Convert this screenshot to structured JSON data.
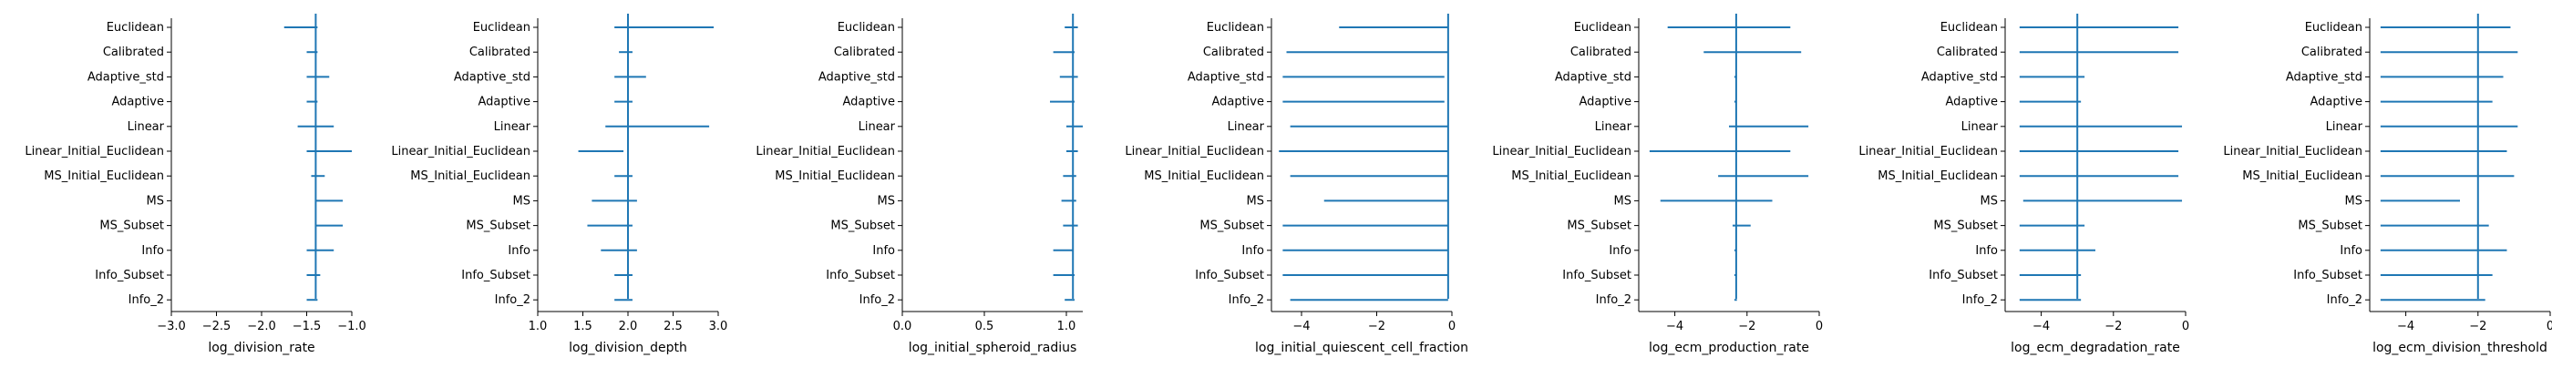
{
  "chart_data": [
    {
      "type": "errorbar",
      "xlabel": "log_division_rate",
      "xlim": [
        -3.0,
        -1.0
      ],
      "xticks": [
        -3.0,
        -2.5,
        -2.0,
        -1.5,
        -1.0
      ],
      "xtick_labels": [
        "−3.0",
        "−2.5",
        "−2.0",
        "−1.5",
        "−1.0"
      ],
      "reference": -1.4,
      "categories": [
        "Euclidean",
        "Calibrated",
        "Adaptive_std",
        "Adaptive",
        "Linear",
        "Linear_Initial_Euclidean",
        "MS_Initial_Euclidean",
        "MS",
        "MS_Subset",
        "Info",
        "Info_Subset",
        "Info_2"
      ],
      "ranges": [
        [
          -1.75,
          -1.38
        ],
        [
          -1.5,
          -1.38
        ],
        [
          -1.5,
          -1.25
        ],
        [
          -1.5,
          -1.38
        ],
        [
          -1.6,
          -1.2
        ],
        [
          -1.5,
          -1.0
        ],
        [
          -1.45,
          -1.3
        ],
        [
          -1.4,
          -1.1
        ],
        [
          -1.4,
          -1.1
        ],
        [
          -1.5,
          -1.2
        ],
        [
          -1.5,
          -1.35
        ],
        [
          -1.5,
          -1.38
        ]
      ]
    },
    {
      "type": "errorbar",
      "xlabel": "log_division_depth",
      "xlim": [
        1.0,
        3.0
      ],
      "xticks": [
        1.0,
        1.5,
        2.0,
        2.5,
        3.0
      ],
      "xtick_labels": [
        "1.0",
        "1.5",
        "2.0",
        "2.5",
        "3.0"
      ],
      "reference": 2.0,
      "categories": [
        "Euclidean",
        "Calibrated",
        "Adaptive_std",
        "Adaptive",
        "Linear",
        "Linear_Initial_Euclidean",
        "MS_Initial_Euclidean",
        "MS",
        "MS_Subset",
        "Info",
        "Info_Subset",
        "Info_2"
      ],
      "ranges": [
        [
          1.85,
          2.95
        ],
        [
          1.9,
          2.05
        ],
        [
          1.85,
          2.2
        ],
        [
          1.85,
          2.05
        ],
        [
          1.75,
          2.9
        ],
        [
          1.45,
          1.95
        ],
        [
          1.85,
          2.05
        ],
        [
          1.6,
          2.1
        ],
        [
          1.55,
          2.05
        ],
        [
          1.7,
          2.1
        ],
        [
          1.85,
          2.05
        ],
        [
          1.85,
          2.05
        ]
      ]
    },
    {
      "type": "errorbar",
      "xlabel": "log_initial_spheroid_radius",
      "xlim": [
        0.0,
        1.1
      ],
      "xticks": [
        0.0,
        0.5,
        1.0
      ],
      "xtick_labels": [
        "0.0",
        "0.5",
        "1.0"
      ],
      "reference": 1.04,
      "categories": [
        "Euclidean",
        "Calibrated",
        "Adaptive_std",
        "Adaptive",
        "Linear",
        "Linear_Initial_Euclidean",
        "MS_Initial_Euclidean",
        "MS",
        "MS_Subset",
        "Info",
        "Info_Subset",
        "Info_2"
      ],
      "ranges": [
        [
          0.99,
          1.07
        ],
        [
          0.92,
          1.05
        ],
        [
          0.96,
          1.07
        ],
        [
          0.9,
          1.05
        ],
        [
          1.0,
          1.1
        ],
        [
          1.0,
          1.07
        ],
        [
          0.98,
          1.06
        ],
        [
          0.97,
          1.06
        ],
        [
          0.98,
          1.07
        ],
        [
          0.92,
          1.04
        ],
        [
          0.92,
          1.05
        ],
        [
          0.99,
          1.05
        ]
      ]
    },
    {
      "type": "errorbar",
      "xlabel": "log_initial_quiescent_cell_fraction",
      "xlim": [
        -4.8,
        0.0
      ],
      "xticks": [
        -4,
        -2,
        0
      ],
      "xtick_labels": [
        "−4",
        "−2",
        "0"
      ],
      "reference": -0.1,
      "categories": [
        "Euclidean",
        "Calibrated",
        "Adaptive_std",
        "Adaptive",
        "Linear",
        "Linear_Initial_Euclidean",
        "MS_Initial_Euclidean",
        "MS",
        "MS_Subset",
        "Info",
        "Info_Subset",
        "Info_2"
      ],
      "ranges": [
        [
          -3.0,
          -0.1
        ],
        [
          -4.4,
          -0.1
        ],
        [
          -4.5,
          -0.2
        ],
        [
          -4.5,
          -0.2
        ],
        [
          -4.3,
          -0.1
        ],
        [
          -4.6,
          -0.1
        ],
        [
          -4.3,
          -0.1
        ],
        [
          -3.4,
          -0.1
        ],
        [
          -4.5,
          -0.1
        ],
        [
          -4.5,
          -0.1
        ],
        [
          -4.5,
          -0.1
        ],
        [
          -4.3,
          -0.1
        ]
      ]
    },
    {
      "type": "errorbar",
      "xlabel": "log_ecm_production_rate",
      "xlim": [
        -5.0,
        0.0
      ],
      "xticks": [
        -4,
        -2,
        0
      ],
      "xtick_labels": [
        "−4",
        "−2",
        "0"
      ],
      "reference": -2.3,
      "categories": [
        "Euclidean",
        "Calibrated",
        "Adaptive_std",
        "Adaptive",
        "Linear",
        "Linear_Initial_Euclidean",
        "MS_Initial_Euclidean",
        "MS",
        "MS_Subset",
        "Info",
        "Info_Subset",
        "Info_2"
      ],
      "ranges": [
        [
          -4.2,
          -0.8
        ],
        [
          -3.2,
          -0.5
        ],
        [
          -2.35,
          -2.28
        ],
        [
          -2.35,
          -2.28
        ],
        [
          -2.5,
          -0.3
        ],
        [
          -4.7,
          -0.8
        ],
        [
          -2.8,
          -0.3
        ],
        [
          -4.4,
          -1.3
        ],
        [
          -2.4,
          -1.9
        ],
        [
          -2.35,
          -2.28
        ],
        [
          -2.35,
          -2.28
        ],
        [
          -2.35,
          -2.28
        ]
      ]
    },
    {
      "type": "errorbar",
      "xlabel": "log_ecm_degradation_rate",
      "xlim": [
        -5.0,
        0.0
      ],
      "xticks": [
        -4,
        -2,
        0
      ],
      "xtick_labels": [
        "−4",
        "−2",
        "0"
      ],
      "reference": -3.0,
      "categories": [
        "Euclidean",
        "Calibrated",
        "Adaptive_std",
        "Adaptive",
        "Linear",
        "Linear_Initial_Euclidean",
        "MS_Initial_Euclidean",
        "MS",
        "MS_Subset",
        "Info",
        "Info_Subset",
        "Info_2"
      ],
      "ranges": [
        [
          -4.6,
          -0.2
        ],
        [
          -4.6,
          -0.2
        ],
        [
          -4.6,
          -2.8
        ],
        [
          -4.6,
          -2.9
        ],
        [
          -4.6,
          -0.1
        ],
        [
          -4.6,
          -0.2
        ],
        [
          -4.6,
          -0.2
        ],
        [
          -4.5,
          -0.1
        ],
        [
          -4.6,
          -2.8
        ],
        [
          -4.6,
          -2.5
        ],
        [
          -4.6,
          -2.9
        ],
        [
          -4.6,
          -2.9
        ]
      ]
    },
    {
      "type": "errorbar",
      "xlabel": "log_ecm_division_threshold",
      "xlim": [
        -5.0,
        0.0
      ],
      "xticks": [
        -4,
        -2,
        0
      ],
      "xtick_labels": [
        "−4",
        "−2",
        "0"
      ],
      "reference": -2.0,
      "categories": [
        "Euclidean",
        "Calibrated",
        "Adaptive_std",
        "Adaptive",
        "Linear",
        "Linear_Initial_Euclidean",
        "MS_Initial_Euclidean",
        "MS",
        "MS_Subset",
        "Info",
        "Info_Subset",
        "Info_2"
      ],
      "ranges": [
        [
          -4.7,
          -1.1
        ],
        [
          -4.7,
          -0.9
        ],
        [
          -4.7,
          -1.3
        ],
        [
          -4.7,
          -1.6
        ],
        [
          -4.7,
          -0.9
        ],
        [
          -4.7,
          -1.2
        ],
        [
          -4.7,
          -1.0
        ],
        [
          -4.7,
          -2.5
        ],
        [
          -4.7,
          -1.7
        ],
        [
          -4.7,
          -1.2
        ],
        [
          -4.7,
          -1.6
        ],
        [
          -4.7,
          -1.8
        ]
      ]
    }
  ],
  "colors": {
    "line": "#1f77b4",
    "axis": "#000000"
  }
}
